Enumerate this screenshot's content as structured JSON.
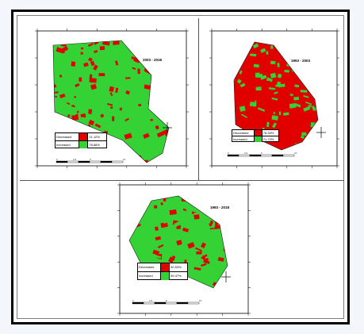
{
  "panels": [
    {
      "id": "a",
      "title": "2003 - 2018",
      "legend": [
        {
          "label": "Decreased",
          "color": "#e00000",
          "percent": "21.12%"
        },
        {
          "label": "Increased",
          "color": "#35d235",
          "percent": "78.88%"
        }
      ],
      "dominant": "green",
      "scale_labels": [
        "0",
        "2.5",
        "5",
        "10"
      ]
    },
    {
      "id": "b",
      "title": "1993 - 2003",
      "legend": [
        {
          "label": "Decreased",
          "color": "#e00000",
          "percent": "78.30%"
        },
        {
          "label": "Increased",
          "color": "#35d235",
          "percent": "21.70%"
        }
      ],
      "dominant": "red",
      "scale_labels": [
        "0",
        "2.5",
        "5",
        "10"
      ]
    },
    {
      "id": "c",
      "title": "1993 - 2018",
      "legend": [
        {
          "label": "Decreased",
          "color": "#e00000",
          "percent": "40.53%"
        },
        {
          "label": "Increased",
          "color": "#35d235",
          "percent": "59.47%"
        }
      ],
      "dominant": "mixed",
      "scale_labels": [
        "0",
        "2.5",
        "5",
        "10"
      ]
    }
  ],
  "colors": {
    "decreased": "#e00000",
    "increased": "#35d235",
    "frame": "#000000",
    "background": "#f3f6fa"
  }
}
